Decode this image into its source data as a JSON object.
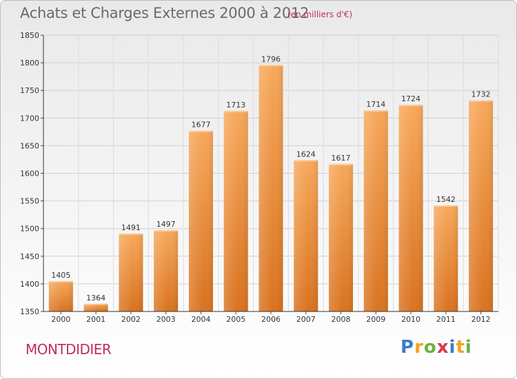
{
  "title": "Achats et Charges Externes 2000 à 2012",
  "subtitle": "(en milliers d'€)",
  "commune": "MONTDIDIER",
  "logo": {
    "text": "Proxiti",
    "letters": [
      {
        "ch": "P",
        "color": "#3a7dc9"
      },
      {
        "ch": "r",
        "color": "#f4a11d"
      },
      {
        "ch": "o",
        "color": "#6ab23e"
      },
      {
        "ch": "x",
        "color": "#d8374a"
      },
      {
        "ch": "i",
        "color": "#3a7dc9"
      },
      {
        "ch": "t",
        "color": "#f4a11d"
      },
      {
        "ch": "i",
        "color": "#6ab23e"
      }
    ]
  },
  "colors": {
    "bar_top": "#f7a85a",
    "bar_bottom": "#d9721f",
    "accent": "#c0305a"
  },
  "chart_data": {
    "type": "bar",
    "categories": [
      "2000",
      "2001",
      "2002",
      "2003",
      "2004",
      "2005",
      "2006",
      "2007",
      "2008",
      "2009",
      "2010",
      "2011",
      "2012"
    ],
    "values": [
      1405,
      1364,
      1491,
      1497,
      1677,
      1713,
      1796,
      1624,
      1617,
      1714,
      1724,
      1542,
      1732
    ],
    "title": "Achats et Charges Externes 2000 à 2012",
    "xlabel": "",
    "ylabel": "",
    "ylim": [
      1350,
      1850
    ],
    "yticks": [
      1350,
      1400,
      1450,
      1500,
      1550,
      1600,
      1650,
      1700,
      1750,
      1800,
      1850
    ],
    "grid": true,
    "legend": "none"
  }
}
